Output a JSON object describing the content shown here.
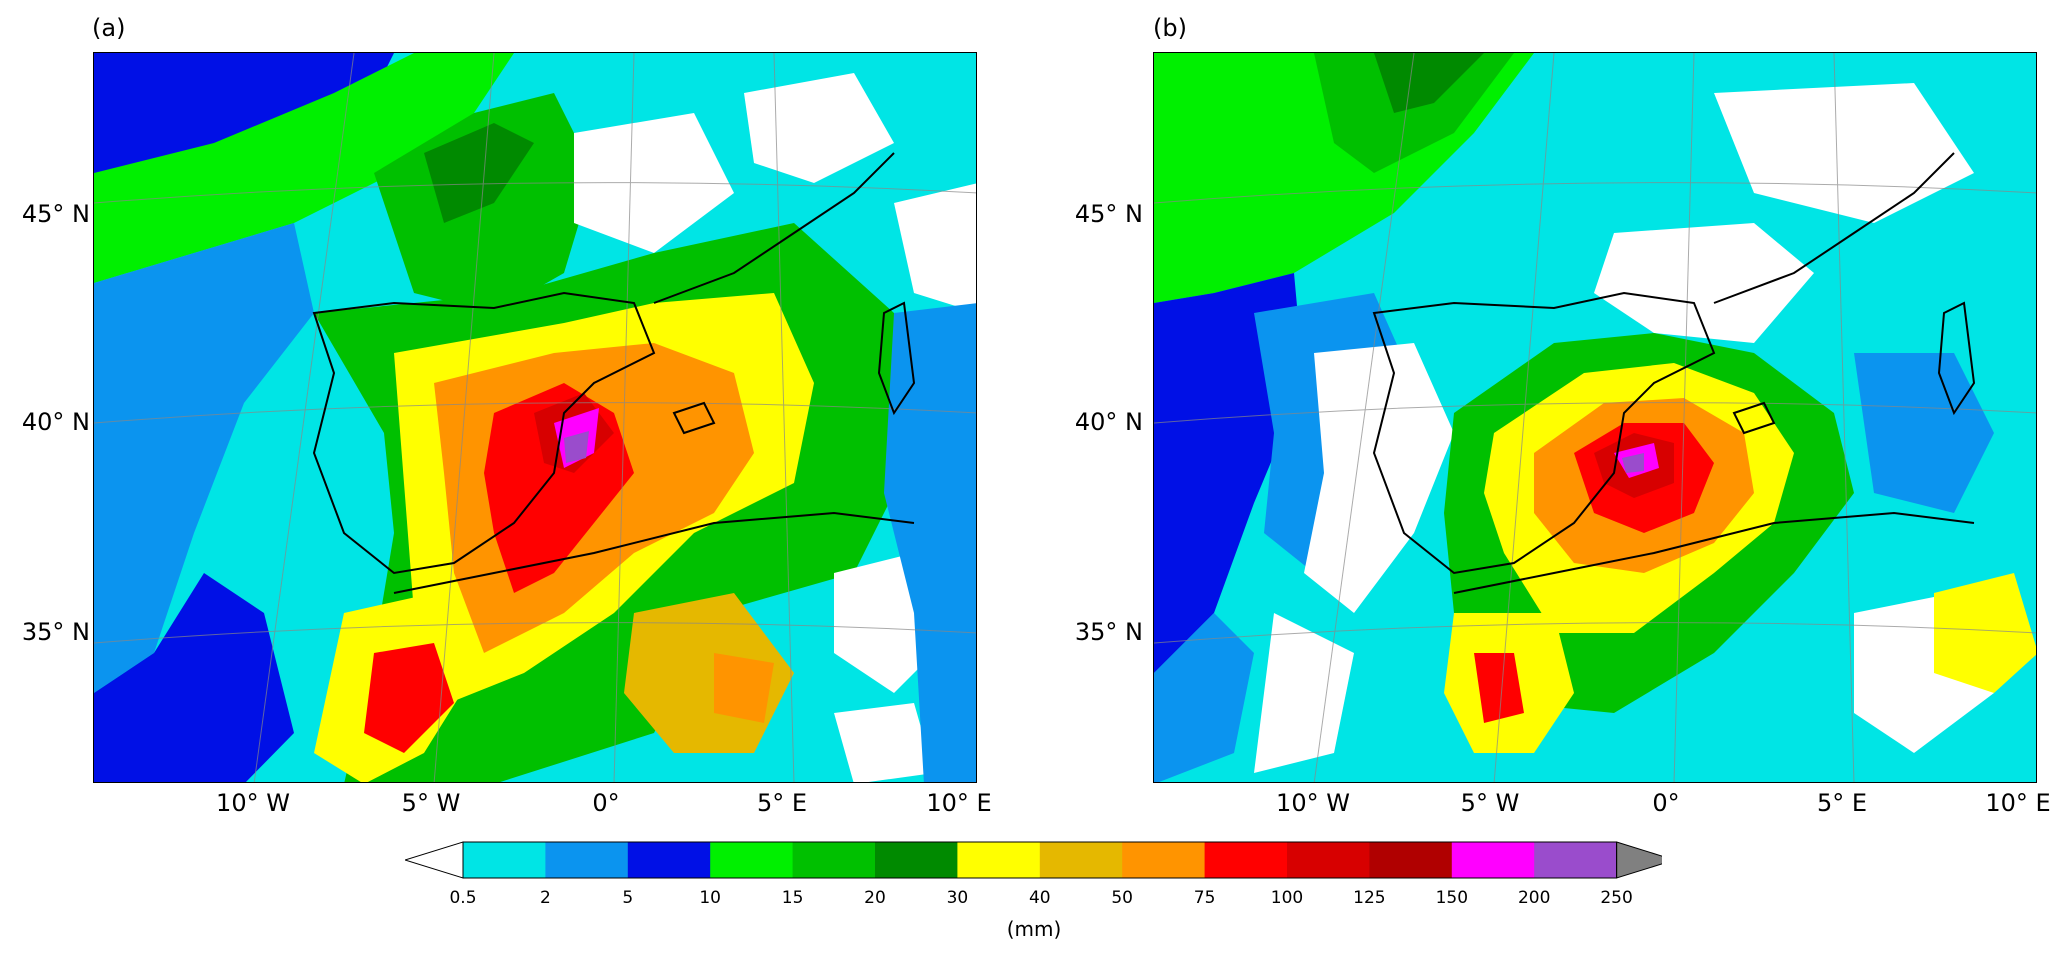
{
  "panels": [
    {
      "label": "(a)"
    },
    {
      "label": "(b)"
    }
  ],
  "y_ticks": [
    "45° N",
    "40° N",
    "35° N"
  ],
  "x_ticks": [
    "10° W",
    "5° W",
    "0°",
    "5° E",
    "10° E"
  ],
  "colorbar": {
    "title": "(mm)",
    "levels": [
      "0.5",
      "2",
      "5",
      "10",
      "15",
      "20",
      "30",
      "40",
      "50",
      "75",
      "100",
      "125",
      "150",
      "200",
      "250"
    ],
    "colors": [
      "#ffffff",
      "#00e5e5",
      "#0b94ef",
      "#0010e6",
      "#00f000",
      "#00c000",
      "#008a00",
      "#ffff00",
      "#e5b800",
      "#ff9400",
      "#ff0000",
      "#d70000",
      "#b00000",
      "#ff00ff",
      "#9a4ccc",
      "#808080"
    ]
  }
}
